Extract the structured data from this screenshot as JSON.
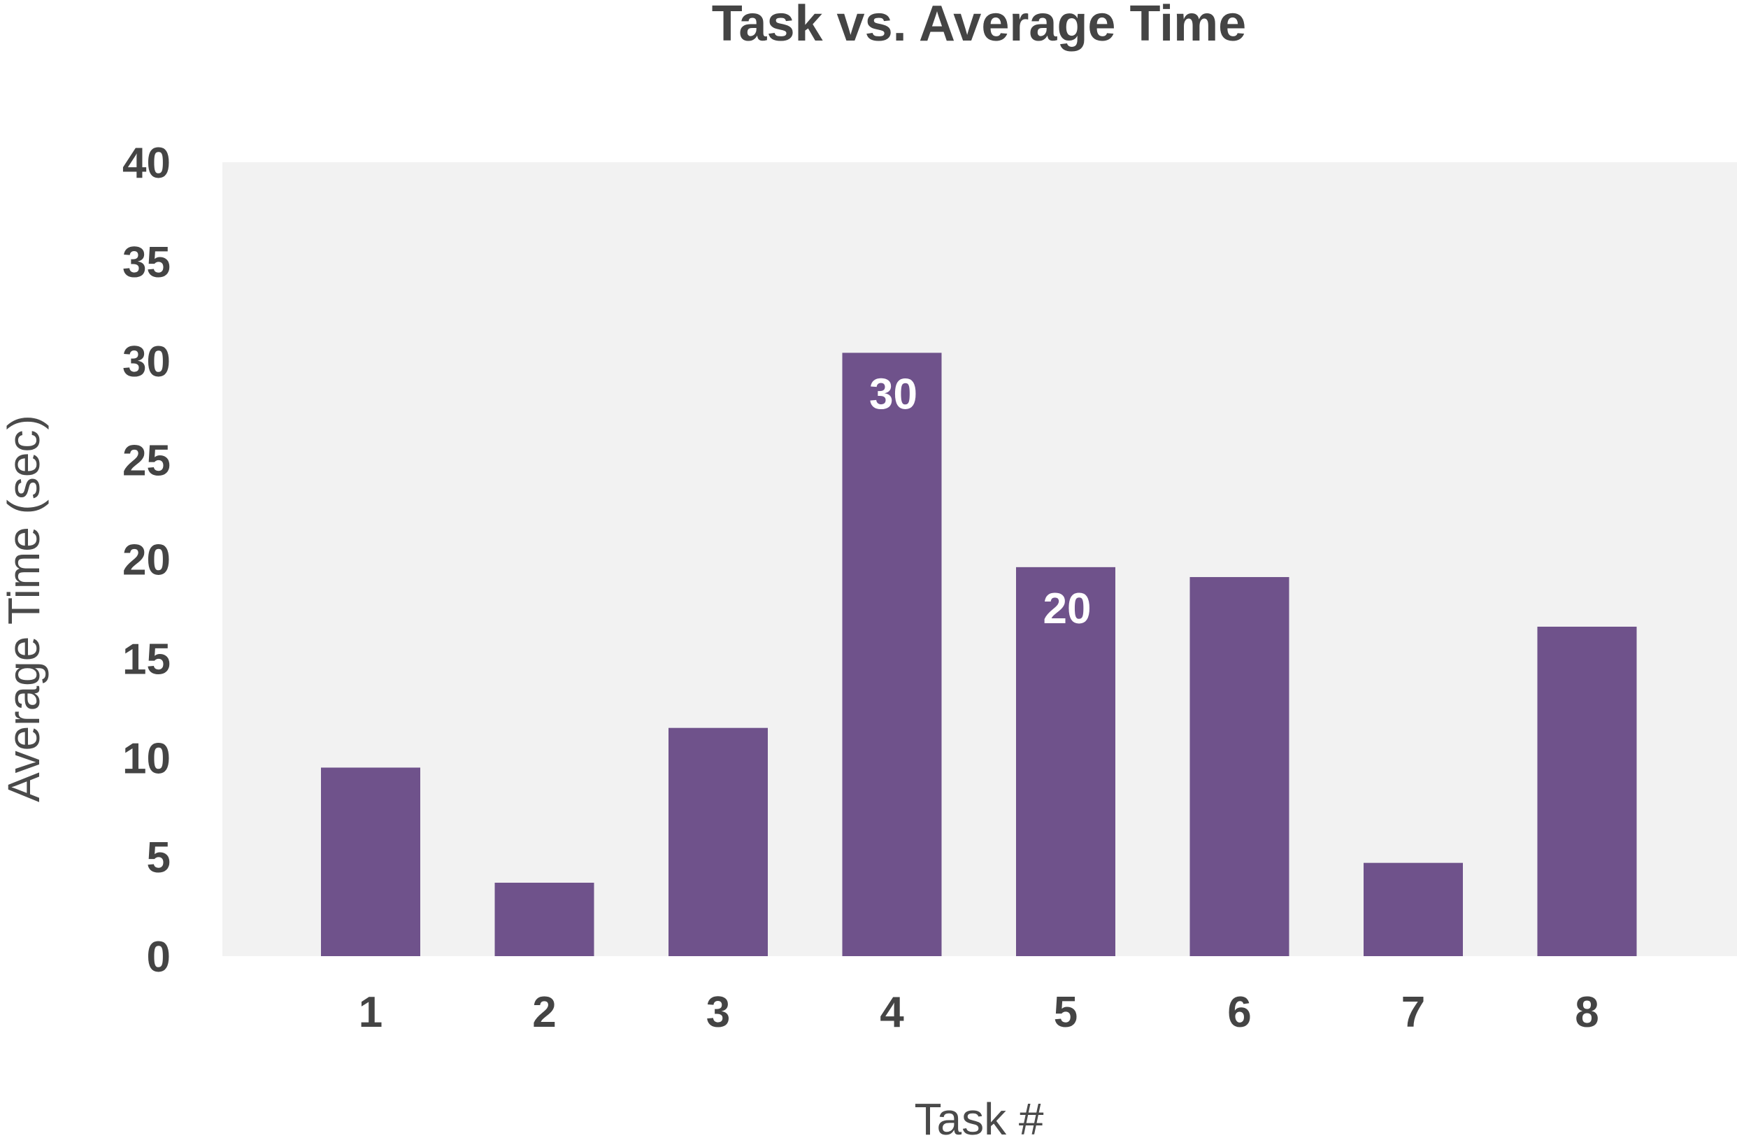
{
  "chart_data": {
    "type": "bar",
    "title": "Task vs. Average Time",
    "xlabel": "Task #",
    "ylabel": "Average Time (sec)",
    "categories": [
      "1",
      "2",
      "3",
      "4",
      "5",
      "6",
      "7",
      "8"
    ],
    "values": [
      9.5,
      3.7,
      11.5,
      30.4,
      19.6,
      19.1,
      4.7,
      16.6
    ],
    "data_labels": [
      "",
      "",
      "",
      "30",
      "20",
      "",
      "",
      ""
    ],
    "ylim": [
      0,
      40
    ],
    "yticks": [
      0,
      5,
      10,
      15,
      20,
      25,
      30,
      35,
      40
    ],
    "grid": false,
    "legend": "none",
    "colors": {
      "bar": "#6f528b",
      "plot_background": "#f2f2f2",
      "text": "#444444",
      "bar_label": "#ffffff"
    }
  }
}
